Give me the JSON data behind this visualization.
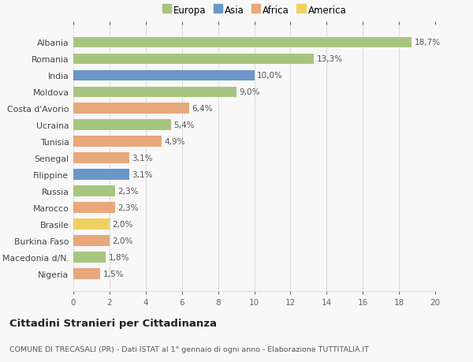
{
  "categories": [
    "Albania",
    "Romania",
    "India",
    "Moldova",
    "Costa d'Avorio",
    "Ucraina",
    "Tunisia",
    "Senegal",
    "Filippine",
    "Russia",
    "Marocco",
    "Brasile",
    "Burkina Faso",
    "Macedonia d/N.",
    "Nigeria"
  ],
  "values": [
    18.7,
    13.3,
    10.0,
    9.0,
    6.4,
    5.4,
    4.9,
    3.1,
    3.1,
    2.3,
    2.3,
    2.0,
    2.0,
    1.8,
    1.5
  ],
  "labels": [
    "18,7%",
    "13,3%",
    "10,0%",
    "9,0%",
    "6,4%",
    "5,4%",
    "4,9%",
    "3,1%",
    "3,1%",
    "2,3%",
    "2,3%",
    "2,0%",
    "2,0%",
    "1,8%",
    "1,5%"
  ],
  "continents": [
    "Europa",
    "Europa",
    "Asia",
    "Europa",
    "Africa",
    "Europa",
    "Africa",
    "Africa",
    "Asia",
    "Europa",
    "Africa",
    "America",
    "Africa",
    "Europa",
    "Africa"
  ],
  "colors": {
    "Europa": "#a8c57f",
    "Asia": "#6b96c8",
    "Africa": "#e8a87c",
    "America": "#f0d060"
  },
  "legend_order": [
    "Europa",
    "Asia",
    "Africa",
    "America"
  ],
  "title": "Cittadini Stranieri per Cittadinanza",
  "subtitle": "COMUNE DI TRECASALI (PR) - Dati ISTAT al 1° gennaio di ogni anno - Elaborazione TUTTITALIA.IT",
  "xlim": [
    0,
    20
  ],
  "xticks": [
    0,
    2,
    4,
    6,
    8,
    10,
    12,
    14,
    16,
    18,
    20
  ],
  "background_color": "#f8f8f8",
  "grid_color": "#dddddd",
  "bar_height": 0.65
}
